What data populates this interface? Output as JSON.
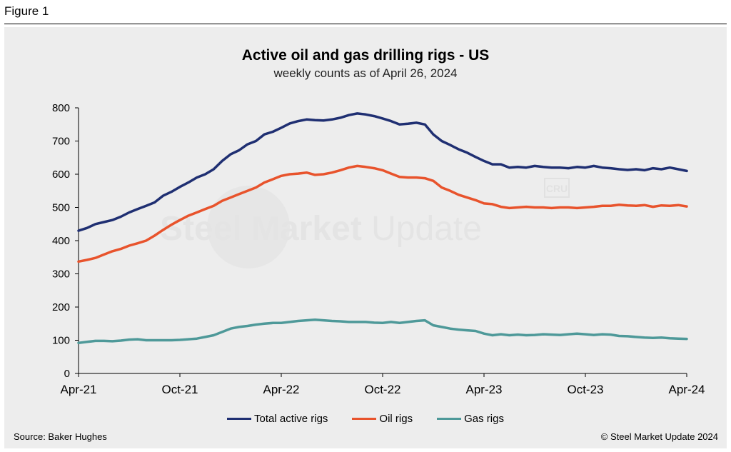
{
  "figure_label": "Figure 1",
  "watermark_text_bold": "Steel Market",
  "watermark_text_light": " Update",
  "watermark_badge": "CRU",
  "source": "Source: Baker Hughes",
  "copyright": "© Steel Market Update 2024",
  "chart_data": {
    "type": "line",
    "title": "Active oil and gas drilling rigs - US",
    "subtitle": "weekly counts as of April 26, 2024",
    "xlabel": "",
    "ylabel": "",
    "ylim": [
      0,
      800
    ],
    "yticks": [
      "0",
      "100",
      "200",
      "300",
      "400",
      "500",
      "600",
      "700",
      "800"
    ],
    "xticks": [
      "Apr-21",
      "Oct-21",
      "Apr-22",
      "Oct-22",
      "Apr-23",
      "Oct-23",
      "Apr-24"
    ],
    "xrange": [
      0,
      36
    ],
    "grid": false,
    "legend": "bottom",
    "series": [
      {
        "name": "Total active rigs",
        "color": "#1f2f72",
        "x": [
          0,
          0.5,
          1,
          1.5,
          2,
          2.5,
          3,
          3.5,
          4,
          4.5,
          5,
          5.5,
          6,
          6.5,
          7,
          7.5,
          8,
          8.5,
          9,
          9.5,
          10,
          10.5,
          11,
          11.5,
          12,
          12.5,
          13,
          13.5,
          14,
          14.5,
          15,
          15.5,
          16,
          16.5,
          17,
          17.5,
          18,
          18.5,
          19,
          19.5,
          20,
          20.5,
          21,
          21.5,
          22,
          22.5,
          23,
          23.5,
          24,
          24.5,
          25,
          25.5,
          26,
          26.5,
          27,
          27.5,
          28,
          28.5,
          29,
          29.5,
          30,
          30.5,
          31,
          31.5,
          32,
          32.5,
          33,
          33.5,
          34,
          34.5,
          35,
          35.5,
          36
        ],
        "values": [
          430,
          438,
          450,
          456,
          462,
          472,
          485,
          495,
          505,
          515,
          535,
          547,
          562,
          575,
          590,
          600,
          615,
          640,
          660,
          672,
          690,
          700,
          720,
          728,
          740,
          753,
          760,
          765,
          763,
          762,
          765,
          770,
          778,
          783,
          780,
          775,
          768,
          760,
          750,
          752,
          755,
          750,
          720,
          700,
          688,
          675,
          665,
          652,
          640,
          630,
          630,
          620,
          622,
          620,
          625,
          622,
          620,
          620,
          618,
          622,
          620,
          625,
          620,
          618,
          615,
          613,
          615,
          612,
          618,
          615,
          620,
          615,
          610
        ]
      },
      {
        "name": "Oil rigs",
        "color": "#e8532c",
        "x": [
          0,
          0.5,
          1,
          1.5,
          2,
          2.5,
          3,
          3.5,
          4,
          4.5,
          5,
          5.5,
          6,
          6.5,
          7,
          7.5,
          8,
          8.5,
          9,
          9.5,
          10,
          10.5,
          11,
          11.5,
          12,
          12.5,
          13,
          13.5,
          14,
          14.5,
          15,
          15.5,
          16,
          16.5,
          17,
          17.5,
          18,
          18.5,
          19,
          19.5,
          20,
          20.5,
          21,
          21.5,
          22,
          22.5,
          23,
          23.5,
          24,
          24.5,
          25,
          25.5,
          26,
          26.5,
          27,
          27.5,
          28,
          28.5,
          29,
          29.5,
          30,
          30.5,
          31,
          31.5,
          32,
          32.5,
          33,
          33.5,
          34,
          34.5,
          35,
          35.5,
          36
        ],
        "values": [
          337,
          342,
          348,
          358,
          368,
          375,
          385,
          392,
          400,
          415,
          432,
          448,
          462,
          475,
          485,
          495,
          505,
          520,
          530,
          540,
          550,
          560,
          575,
          585,
          595,
          600,
          602,
          605,
          598,
          600,
          605,
          612,
          620,
          625,
          622,
          618,
          612,
          602,
          592,
          590,
          590,
          588,
          580,
          560,
          550,
          538,
          530,
          522,
          512,
          510,
          502,
          498,
          500,
          502,
          500,
          500,
          498,
          500,
          500,
          498,
          500,
          502,
          505,
          505,
          508,
          506,
          505,
          507,
          502,
          506,
          505,
          507,
          503
        ]
      },
      {
        "name": "Gas rigs",
        "color": "#4e9999",
        "x": [
          0,
          0.5,
          1,
          1.5,
          2,
          2.5,
          3,
          3.5,
          4,
          4.5,
          5,
          5.5,
          6,
          6.5,
          7,
          7.5,
          8,
          8.5,
          9,
          9.5,
          10,
          10.5,
          11,
          11.5,
          12,
          12.5,
          13,
          13.5,
          14,
          14.5,
          15,
          15.5,
          16,
          16.5,
          17,
          17.5,
          18,
          18.5,
          19,
          19.5,
          20,
          20.5,
          21,
          21.5,
          22,
          22.5,
          23,
          23.5,
          24,
          24.5,
          25,
          25.5,
          26,
          26.5,
          27,
          27.5,
          28,
          28.5,
          29,
          29.5,
          30,
          30.5,
          31,
          31.5,
          32,
          32.5,
          33,
          33.5,
          34,
          34.5,
          35,
          35.5,
          36
        ],
        "values": [
          92,
          95,
          98,
          98,
          97,
          99,
          102,
          103,
          100,
          100,
          100,
          100,
          101,
          103,
          105,
          110,
          115,
          125,
          135,
          140,
          143,
          147,
          150,
          152,
          152,
          155,
          158,
          160,
          162,
          160,
          158,
          157,
          155,
          155,
          155,
          153,
          152,
          155,
          152,
          155,
          158,
          160,
          145,
          140,
          135,
          132,
          130,
          128,
          120,
          115,
          118,
          115,
          117,
          115,
          116,
          118,
          117,
          116,
          118,
          120,
          118,
          116,
          118,
          117,
          113,
          112,
          110,
          108,
          107,
          108,
          106,
          105,
          104
        ]
      }
    ]
  }
}
